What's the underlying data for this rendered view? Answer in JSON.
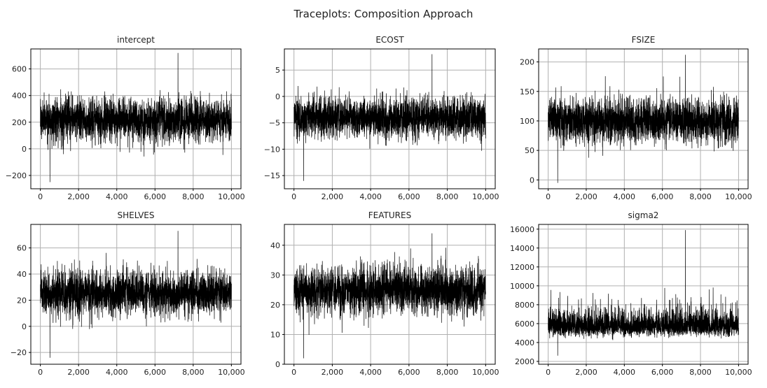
{
  "figure": {
    "title": "Traceplots: Composition Approach",
    "trace_color": "#000000",
    "grid_color": "#b0b0b0"
  },
  "chart_data": [
    {
      "type": "line",
      "title": "intercept",
      "xlim": [
        -500,
        10500
      ],
      "ylim": [
        -300,
        750
      ],
      "x_ticks": [
        0,
        2000,
        4000,
        6000,
        8000,
        10000
      ],
      "x_tick_labels": [
        "0",
        "2,000",
        "4,000",
        "6,000",
        "8,000",
        "10,000"
      ],
      "y_ticks": [
        -200,
        0,
        200,
        400,
        600
      ],
      "y_tick_labels": [
        "−200",
        "0",
        "200",
        "400",
        "600"
      ],
      "grid": true,
      "series": [
        {
          "x_range": [
            0,
            10000
          ],
          "n": 10000,
          "mean": 220,
          "typical_range": [
            20,
            450
          ],
          "extremes": [
            -250,
            720
          ]
        }
      ]
    },
    {
      "type": "line",
      "title": "ECOST",
      "xlim": [
        -500,
        10500
      ],
      "ylim": [
        -17.5,
        9
      ],
      "x_ticks": [
        0,
        2000,
        4000,
        6000,
        8000,
        10000
      ],
      "x_tick_labels": [
        "0",
        "2,000",
        "4,000",
        "6,000",
        "8,000",
        "10,000"
      ],
      "y_ticks": [
        -15,
        -10,
        -5,
        0,
        5
      ],
      "y_tick_labels": [
        "−15",
        "−10",
        "−5",
        "0",
        "5"
      ],
      "grid": true,
      "series": [
        {
          "x_range": [
            0,
            10000
          ],
          "n": 10000,
          "mean": -4,
          "typical_range": [
            -9,
            1
          ],
          "extremes": [
            -16,
            8
          ]
        }
      ]
    },
    {
      "type": "line",
      "title": "FSIZE",
      "xlim": [
        -500,
        10500
      ],
      "ylim": [
        -15,
        222
      ],
      "x_ticks": [
        0,
        2000,
        4000,
        6000,
        8000,
        10000
      ],
      "x_tick_labels": [
        "0",
        "2,000",
        "4,000",
        "6,000",
        "8,000",
        "10,000"
      ],
      "y_ticks": [
        0,
        50,
        100,
        150,
        200
      ],
      "y_tick_labels": [
        "0",
        "50",
        "100",
        "150",
        "200"
      ],
      "grid": true,
      "series": [
        {
          "x_range": [
            0,
            10000
          ],
          "n": 10000,
          "mean": 100,
          "typical_range": [
            55,
            155
          ],
          "extremes": [
            -5,
            212
          ]
        }
      ]
    },
    {
      "type": "line",
      "title": "SHELVES",
      "xlim": [
        -500,
        10500
      ],
      "ylim": [
        -29,
        78
      ],
      "x_ticks": [
        0,
        2000,
        4000,
        6000,
        8000,
        10000
      ],
      "x_tick_labels": [
        "0",
        "2,000",
        "4,000",
        "6,000",
        "8,000",
        "10,000"
      ],
      "y_ticks": [
        -20,
        0,
        20,
        40,
        60
      ],
      "y_tick_labels": [
        "−20",
        "0",
        "20",
        "40",
        "60"
      ],
      "grid": true,
      "series": [
        {
          "x_range": [
            0,
            10000
          ],
          "n": 10000,
          "mean": 25,
          "typical_range": [
            5,
            50
          ],
          "extremes": [
            -24,
            73
          ]
        }
      ]
    },
    {
      "type": "line",
      "title": "FEATURES",
      "xlim": [
        -500,
        10500
      ],
      "ylim": [
        0,
        47
      ],
      "x_ticks": [
        0,
        2000,
        4000,
        6000,
        8000,
        10000
      ],
      "x_tick_labels": [
        "0",
        "2,000",
        "4,000",
        "6,000",
        "8,000",
        "10,000"
      ],
      "y_ticks": [
        0,
        10,
        20,
        30,
        40
      ],
      "y_tick_labels": [
        "0",
        "10",
        "20",
        "30",
        "40"
      ],
      "grid": true,
      "series": [
        {
          "x_range": [
            0,
            10000
          ],
          "n": 10000,
          "mean": 25,
          "typical_range": [
            15,
            36
          ],
          "extremes": [
            2,
            44
          ]
        }
      ]
    },
    {
      "type": "line",
      "title": "sigma2",
      "xlim": [
        -500,
        10500
      ],
      "ylim": [
        1700,
        16500
      ],
      "x_ticks": [
        0,
        2000,
        4000,
        6000,
        8000,
        10000
      ],
      "x_tick_labels": [
        "0",
        "2,000",
        "4,000",
        "6,000",
        "8,000",
        "10,000"
      ],
      "y_ticks": [
        2000,
        4000,
        6000,
        8000,
        10000,
        12000,
        14000,
        16000
      ],
      "y_tick_labels": [
        "2000",
        "4000",
        "6000",
        "8000",
        "10000",
        "12000",
        "14000",
        "16000"
      ],
      "grid": true,
      "series": [
        {
          "x_range": [
            0,
            10000
          ],
          "n": 10000,
          "mean": 5800,
          "typical_range": [
            3500,
            9000
          ],
          "extremes": [
            2600,
            15900
          ]
        }
      ]
    }
  ]
}
